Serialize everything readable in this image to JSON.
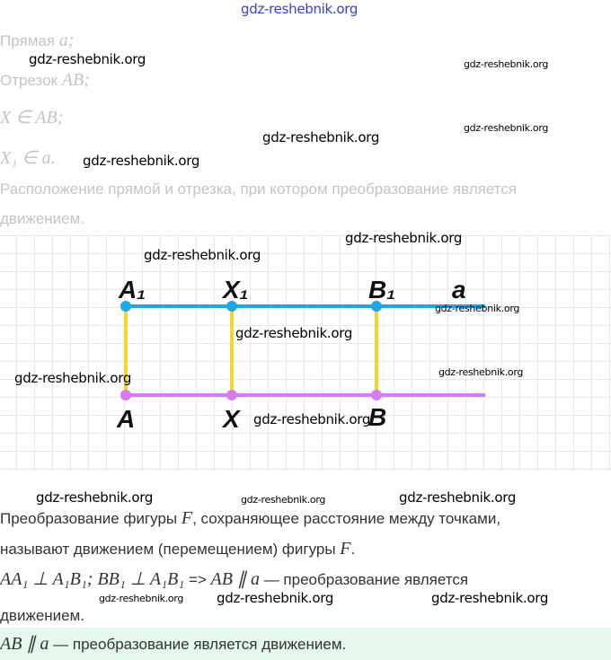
{
  "watermark": "gdz-reshebnik.org",
  "given": {
    "line1": {
      "text": "Прямая ",
      "math": "a;"
    },
    "line2": {
      "text": "Отрезок ",
      "math": "AB;"
    },
    "line3": {
      "math": "X ∈ AB;"
    },
    "line4": {
      "math": "X₁ ∈ a."
    },
    "question_l1": "Расположение прямой и отрезка, при котором преобразование является",
    "question_l2": "движением."
  },
  "figure": {
    "labels": {
      "A1": "A₁",
      "X1": "X₁",
      "B1": "B₁",
      "a": "a",
      "A": "A",
      "X": "X",
      "B": "B"
    },
    "colors": {
      "line_a": "#1ea6e6",
      "segment_ab": "#d77cf0",
      "perpendiculars": "#f5d626"
    }
  },
  "definition": {
    "l1a": "Преобразование фигуры ",
    "l1m": "F",
    "l1b": ", сохраняющее расстояние между точками,",
    "l2a": "называют движением (перемещением) фигуры ",
    "l2m": "F",
    "l2b": "."
  },
  "reasoning": {
    "math": "AA₁ ⊥ A₁B₁; BB₁ ⊥ A₁B₁",
    "arrow": " => ",
    "math2": "AB ∥ a",
    "text": " — преобразование является",
    "l2": "движением."
  },
  "answer": {
    "math": "AB ∥ a",
    "text": " — преобразование является движением."
  }
}
